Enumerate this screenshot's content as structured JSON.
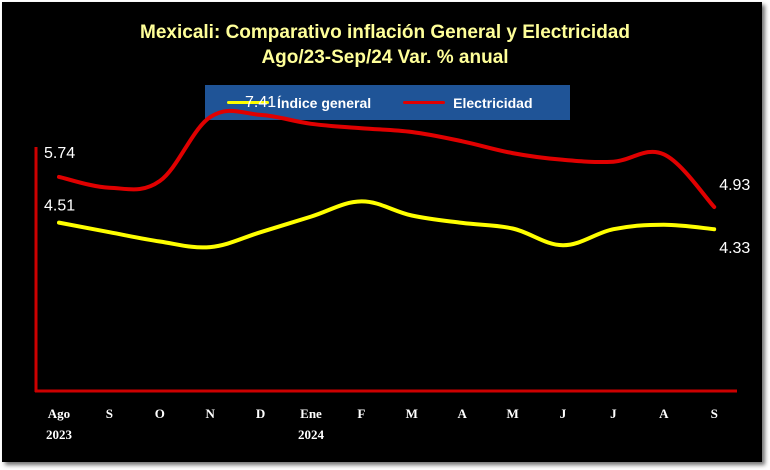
{
  "chart_data": {
    "type": "line",
    "title": "Mexicali: Comparativo inflación General y Electricidad",
    "subtitle": "Ago/23-Sep/24 Var. % anual",
    "categories": [
      "Ago",
      "S",
      "O",
      "N",
      "D",
      "Ene",
      "F",
      "M",
      "A",
      "M",
      "J",
      "J",
      "A",
      "S"
    ],
    "category_sublabels": [
      "2023",
      "",
      "",
      "",
      "",
      "2024",
      "",
      "",
      "",
      "",
      "",
      "",
      "",
      ""
    ],
    "series": [
      {
        "name": "Índice general",
        "color": "#ffff00",
        "values": [
          4.51,
          4.25,
          4.0,
          3.85,
          4.25,
          4.67,
          5.08,
          4.7,
          4.5,
          4.35,
          3.9,
          4.33,
          4.45,
          4.33
        ]
      },
      {
        "name": "Electricidad",
        "color": "#e00000",
        "values": [
          5.74,
          5.45,
          5.63,
          7.35,
          7.41,
          7.17,
          7.05,
          6.95,
          6.7,
          6.38,
          6.2,
          6.15,
          6.35,
          4.93
        ]
      }
    ],
    "data_labels": [
      {
        "series": 0,
        "index": 0,
        "text": "4.51"
      },
      {
        "series": 0,
        "index": 13,
        "text": "4.33"
      },
      {
        "series": 1,
        "index": 0,
        "text": "5.74"
      },
      {
        "series": 1,
        "index": 4,
        "text": "7.41"
      },
      {
        "series": 1,
        "index": 13,
        "text": "4.93"
      }
    ],
    "ylim": [
      0,
      8
    ],
    "grid": false,
    "legend_position": "top",
    "axis_color": "#cc0000",
    "background": "#000000"
  }
}
